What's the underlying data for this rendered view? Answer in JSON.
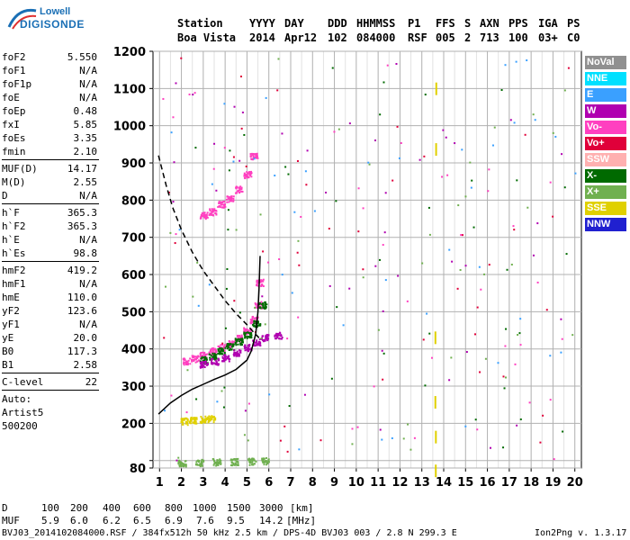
{
  "logo": {
    "line1": "Lowell",
    "line2": "DIGISONDE"
  },
  "header": {
    "labels": [
      "Station",
      "YYYY",
      "DAY",
      "DDD",
      "HHMMSS",
      "P1",
      "FFS",
      "S",
      "AXN",
      "PPS",
      "IGA",
      "PS"
    ],
    "values": [
      "Boa Vista",
      "2014",
      "Apr12",
      "102",
      "084000",
      "RSF",
      "005",
      "2",
      "713",
      "100",
      "03+",
      "C0"
    ]
  },
  "params": {
    "group1": [
      {
        "label": "foF2",
        "value": "5.550"
      },
      {
        "label": "foF1",
        "value": "N/A"
      },
      {
        "label": "foF1p",
        "value": "N/A"
      },
      {
        "label": "foE",
        "value": "N/A"
      },
      {
        "label": "foEp",
        "value": "0.48"
      },
      {
        "label": "fxI",
        "value": "5.85"
      },
      {
        "label": "foEs",
        "value": "3.35"
      },
      {
        "label": "fmin",
        "value": "2.10"
      }
    ],
    "group2": [
      {
        "label": "MUF(D)",
        "value": "14.17"
      },
      {
        "label": "M(D)",
        "value": "2.55"
      },
      {
        "label": "D",
        "value": "N/A"
      }
    ],
    "group3": [
      {
        "label": "h`F",
        "value": "365.3"
      },
      {
        "label": "h`F2",
        "value": "365.3"
      },
      {
        "label": "h`E",
        "value": "N/A"
      },
      {
        "label": "h`Es",
        "value": "98.8"
      }
    ],
    "group4": [
      {
        "label": "hmF2",
        "value": "419.2"
      },
      {
        "label": "hmF1",
        "value": "N/A"
      },
      {
        "label": "hmE",
        "value": "110.0"
      },
      {
        "label": "yF2",
        "value": "123.6"
      },
      {
        "label": "yF1",
        "value": "N/A"
      },
      {
        "label": "yE",
        "value": "20.0"
      },
      {
        "label": "B0",
        "value": "117.3"
      },
      {
        "label": "B1",
        "value": "2.58"
      }
    ],
    "group5": [
      {
        "label": "C-level",
        "value": "22"
      }
    ],
    "auto": [
      "Auto:",
      "Artist5",
      "500200"
    ]
  },
  "legend": [
    {
      "name": "NoVal",
      "color": "#909090"
    },
    {
      "name": "NNE",
      "color": "#00e0ff"
    },
    {
      "name": "E",
      "color": "#3aa0ff"
    },
    {
      "name": "W",
      "color": "#b000b0"
    },
    {
      "name": "Vo-",
      "color": "#ff40c0"
    },
    {
      "name": "Vo+",
      "color": "#e0003a"
    },
    {
      "name": "SSW",
      "color": "#ffb0b0"
    },
    {
      "name": "X-",
      "color": "#006a00"
    },
    {
      "name": "X+",
      "color": "#70b050"
    },
    {
      "name": "SSE",
      "color": "#e0d000"
    },
    {
      "name": "NNW",
      "color": "#2020d0"
    }
  ],
  "footer": {
    "d_label": "D",
    "d_values": [
      "100",
      "200",
      "400",
      "600",
      "800",
      "1000",
      "1500",
      "3000",
      "[km]"
    ],
    "muf_label": "MUF",
    "muf_values": [
      "5.9",
      "6.0",
      "6.2",
      "6.5",
      "6.9",
      "7.6",
      "9.5",
      "14.2",
      "[MHz]"
    ],
    "file_line": "BVJ03_2014102084000.RSF / 384fx512h 50 kHz 2.5 km / DPS-4D BVJ03 003 / 2.8 N 299.3 E",
    "version": "Ion2Png v. 1.3.17"
  },
  "chart_data": {
    "type": "scatter",
    "title": "",
    "xlabel": "",
    "ylabel": "",
    "xlim": [
      1,
      20
    ],
    "ylim": [
      80,
      1200
    ],
    "x_ticks": [
      1,
      2,
      3,
      4,
      5,
      6,
      7,
      8,
      9,
      10,
      11,
      12,
      13,
      14,
      15,
      16,
      17,
      18,
      19,
      20
    ],
    "y_ticks": [
      80,
      100,
      200,
      300,
      400,
      500,
      600,
      700,
      800,
      900,
      1000,
      1100,
      1200
    ],
    "y_tick_labels": [
      "80",
      "",
      "200",
      "300",
      "400",
      "500",
      "600",
      "700",
      "800",
      "900",
      "1000",
      "1100",
      "1200"
    ],
    "grid": true,
    "series": [
      {
        "name": "",
        "style": "solid",
        "x": [
          0.95,
          1.5,
          2.0,
          2.5,
          3.0,
          3.5,
          4.0,
          4.5,
          5.0,
          5.2,
          5.4,
          5.5,
          5.55,
          5.6
        ],
        "y": [
          225,
          255,
          275,
          292,
          305,
          318,
          330,
          345,
          370,
          395,
          440,
          500,
          560,
          650
        ]
      },
      {
        "name": "",
        "style": "dashed",
        "x": [
          0.95,
          1.3,
          1.6,
          2.0,
          2.5,
          3.0,
          3.5,
          4.0,
          4.5,
          5.0,
          5.3,
          5.55
        ],
        "y": [
          920,
          840,
          780,
          720,
          660,
          610,
          570,
          530,
          495,
          465,
          445,
          430
        ]
      }
    ],
    "traces": [
      {
        "id": "f2-o-main",
        "color": "#ff40c0",
        "x": [
          2.2,
          2.6,
          3.0,
          3.4,
          3.8,
          4.2,
          4.6,
          5.0,
          5.3,
          5.5,
          5.55
        ],
        "y": [
          368,
          375,
          385,
          395,
          405,
          415,
          430,
          450,
          480,
          520,
          580
        ]
      },
      {
        "id": "f2-x-main",
        "color": "#006a00",
        "x": [
          3.0,
          3.4,
          3.8,
          4.2,
          4.6,
          5.0,
          5.4,
          5.7
        ],
        "y": [
          372,
          382,
          395,
          408,
          422,
          440,
          470,
          520
        ]
      },
      {
        "id": "f2-w",
        "color": "#b000b0",
        "x": [
          3.0,
          3.5,
          4.0,
          4.5,
          5.0,
          5.4,
          5.8,
          6.4
        ],
        "y": [
          360,
          368,
          378,
          390,
          405,
          420,
          432,
          438
        ]
      },
      {
        "id": "es-o",
        "color": "#e0d000",
        "x": [
          2.1,
          2.5,
          3.0,
          3.35
        ],
        "y": [
          207,
          210,
          212,
          214
        ]
      },
      {
        "id": "e-multi",
        "color": "#70b050",
        "x": [
          2.0,
          2.8,
          3.6,
          4.4,
          5.2,
          5.8
        ],
        "y": [
          95,
          96,
          97,
          98,
          99,
          100
        ]
      },
      {
        "id": "f2-2hop",
        "color": "#ff40c0",
        "x": [
          3.0,
          3.4,
          3.8,
          4.2,
          4.6,
          5.0,
          5.3
        ],
        "y": [
          760,
          770,
          790,
          805,
          830,
          870,
          920
        ]
      },
      {
        "id": "noise-13-6",
        "color": "#e0d000",
        "x": [
          13.6,
          13.6,
          13.6,
          13.6,
          13.6,
          13.6
        ],
        "y": [
          1120,
          960,
          450,
          270,
          170,
          85
        ]
      }
    ]
  }
}
